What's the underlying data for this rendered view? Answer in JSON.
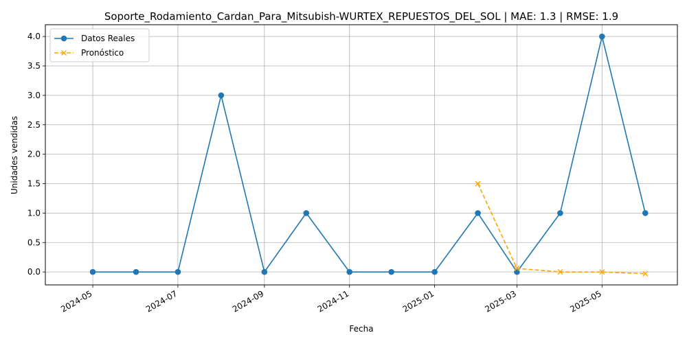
{
  "chart_data": {
    "type": "line",
    "title": "Soporte_Rodamiento_Cardan_Para_Mitsubish-WURTEX_REPUESTOS_DEL_SOL | MAE: 1.3 | RMSE: 1.9",
    "xlabel": "Fecha",
    "ylabel": "Unidades vendidas",
    "x_axis_type": "date",
    "xlim": [
      "2024-03-28",
      "2025-06-24"
    ],
    "ylim": [
      -0.22,
      4.2
    ],
    "x_ticks": [
      "2024-05",
      "2024-07",
      "2024-09",
      "2024-11",
      "2025-01",
      "2025-03",
      "2025-05"
    ],
    "y_ticks": [
      "0.0",
      "0.5",
      "1.0",
      "1.5",
      "2.0",
      "2.5",
      "3.0",
      "3.5",
      "4.0"
    ],
    "grid": true,
    "legend_position": "top-left",
    "series": [
      {
        "name": "Datos Reales",
        "color": "#1f77b4",
        "line_style": "solid",
        "marker": "circle",
        "x": [
          "2024-05-01",
          "2024-06-01",
          "2024-07-01",
          "2024-08-01",
          "2024-09-01",
          "2024-10-01",
          "2024-11-01",
          "2024-12-01",
          "2025-01-01",
          "2025-02-01",
          "2025-03-01",
          "2025-04-01",
          "2025-05-01",
          "2025-06-01"
        ],
        "y": [
          0,
          0,
          0,
          3,
          0,
          1,
          0,
          0,
          0,
          1,
          0,
          1,
          4,
          1
        ]
      },
      {
        "name": "Pronóstico",
        "color": "#ffa500",
        "line_style": "dashed",
        "marker": "x",
        "x": [
          "2025-02-01",
          "2025-03-01",
          "2025-04-01",
          "2025-05-01",
          "2025-06-01"
        ],
        "y": [
          1.5,
          0.06,
          0.0,
          0.0,
          -0.03
        ]
      }
    ]
  }
}
